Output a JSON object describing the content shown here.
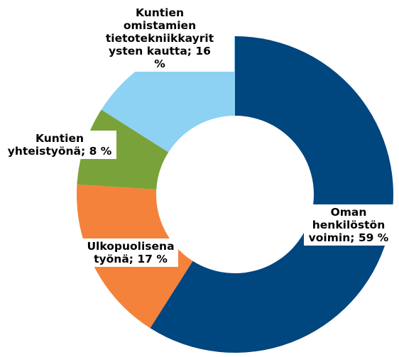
{
  "chart_data": {
    "type": "pie",
    "donut": true,
    "title": "",
    "slices": [
      {
        "key": "oma",
        "label_lines": [
          "Oman",
          "henkilöstön",
          "voimin; 59 %"
        ],
        "value": 59,
        "color": "#00467F"
      },
      {
        "key": "ulko",
        "label_lines": [
          "Ulkopuolisena",
          "työnä; 17 %"
        ],
        "value": 17,
        "color": "#F5823A"
      },
      {
        "key": "yht",
        "label_lines": [
          "Kuntien",
          "yhteistyönä; 8 %"
        ],
        "value": 8,
        "color": "#7AA23A"
      },
      {
        "key": "omist",
        "label_lines": [
          "Kuntien",
          "omistamien",
          "tietotekniikkayrit",
          "ysten kautta; 16",
          "%"
        ],
        "value": 16,
        "color": "#8DD1F3"
      }
    ],
    "legend": "none",
    "grid": false
  }
}
